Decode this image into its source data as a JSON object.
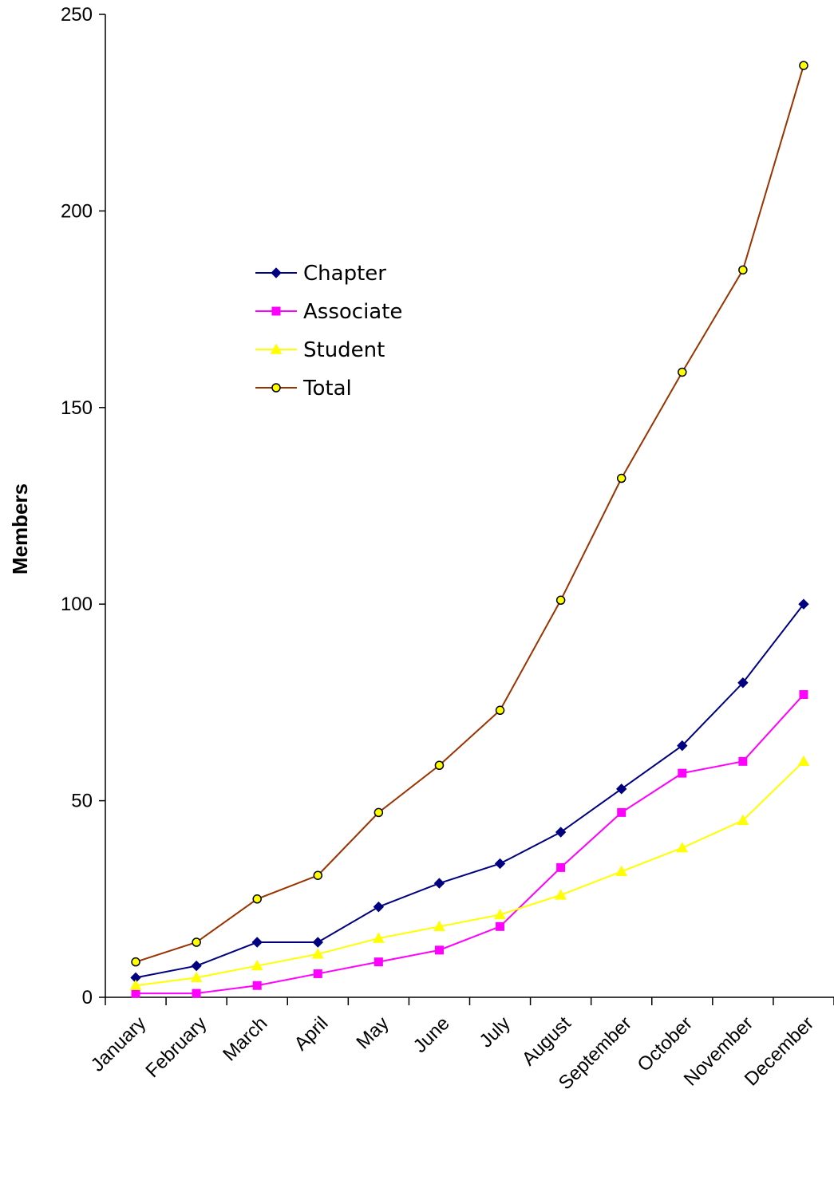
{
  "chart_data": {
    "type": "line",
    "title": "",
    "xlabel": "",
    "ylabel": "Members",
    "ylim": [
      0,
      250
    ],
    "yticks": [
      0,
      50,
      100,
      150,
      200,
      250
    ],
    "grid": false,
    "legend_position": "upper-left-inside",
    "categories": [
      "January",
      "February",
      "March",
      "April",
      "May",
      "June",
      "July",
      "August",
      "September",
      "October",
      "November",
      "December"
    ],
    "series": [
      {
        "name": "Chapter",
        "color": "#000080",
        "marker": "diamond",
        "values": [
          5,
          8,
          14,
          14,
          23,
          29,
          34,
          42,
          53,
          64,
          80,
          100
        ]
      },
      {
        "name": "Associate",
        "color": "#ff00ff",
        "marker": "square",
        "values": [
          1,
          1,
          3,
          6,
          9,
          12,
          18,
          33,
          47,
          57,
          60,
          77
        ]
      },
      {
        "name": "Student",
        "color": "#ffff00",
        "marker": "triangle",
        "values": [
          3,
          5,
          8,
          11,
          15,
          18,
          21,
          26,
          32,
          38,
          45,
          60
        ]
      },
      {
        "name": "Total",
        "color": "#993300",
        "marker": "circle",
        "values": [
          9,
          14,
          25,
          31,
          47,
          59,
          73,
          101,
          132,
          159,
          185,
          237
        ]
      }
    ]
  }
}
